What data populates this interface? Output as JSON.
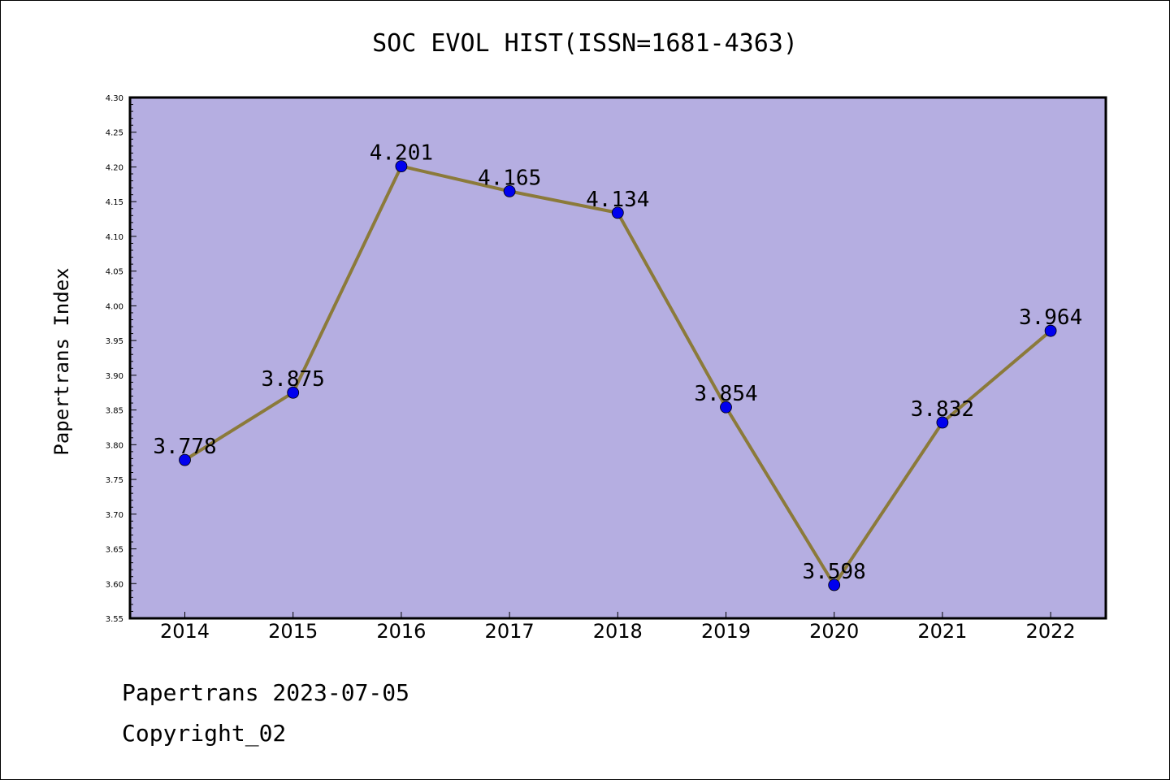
{
  "chart_data": {
    "type": "line",
    "title": "SOC EVOL HIST(ISSN=1681-4363)",
    "xlabel": "",
    "ylabel": "Papertrans Index",
    "categories": [
      "2014",
      "2015",
      "2016",
      "2017",
      "2018",
      "2019",
      "2020",
      "2021",
      "2022"
    ],
    "series": [
      {
        "values": [
          3.778,
          3.875,
          4.201,
          4.165,
          4.134,
          3.854,
          3.598,
          3.832,
          3.964
        ]
      }
    ],
    "data_labels": [
      "3.778",
      "3.875",
      "4.201",
      "4.165",
      "4.134",
      "3.854",
      "3.598",
      "3.832",
      "3.964"
    ],
    "ylim": [
      3.55,
      4.3
    ],
    "yticks": [
      "3.55",
      "3.60",
      "3.65",
      "3.70",
      "3.75",
      "3.80",
      "3.85",
      "3.90",
      "3.95",
      "4.00",
      "4.05",
      "4.10",
      "4.15",
      "4.20",
      "4.25",
      "4.30"
    ],
    "grid": false,
    "colors": {
      "plot_bg": "#b5aee1",
      "line": "#8b7a3a",
      "marker": "#0000ee"
    }
  },
  "footer": {
    "line1": "Papertrans 2023-07-05",
    "line2": "Copyright_02"
  }
}
